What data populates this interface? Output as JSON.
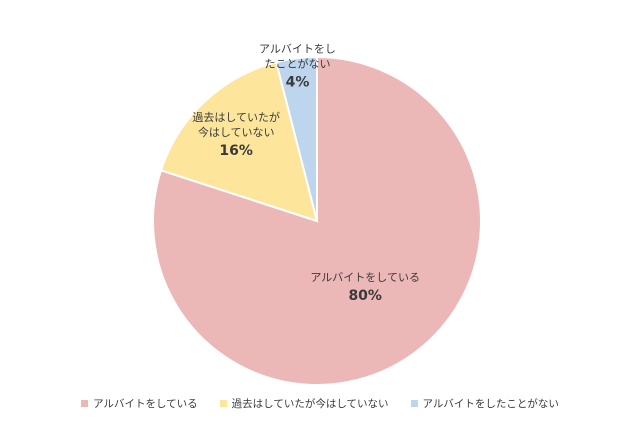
{
  "chart_data": {
    "type": "pie",
    "start_angle": "top, clockwise",
    "legend_position": "bottom",
    "slices": [
      {
        "label": "アルバイトをしている",
        "label_lines": [
          "アルバイトをしている"
        ],
        "value": 80,
        "display": "80%",
        "color": "#ecb7b7"
      },
      {
        "label": "過去はしていたが今はしていない",
        "label_lines": [
          "過去はしていたが",
          "今はしていない"
        ],
        "value": 16,
        "display": "16%",
        "color": "#fde69c"
      },
      {
        "label": "アルバイトをしたことがない",
        "label_lines": [
          "アルバイトをし",
          "たことがない"
        ],
        "value": 4,
        "display": "4%",
        "color": "#bed5ee"
      }
    ]
  }
}
